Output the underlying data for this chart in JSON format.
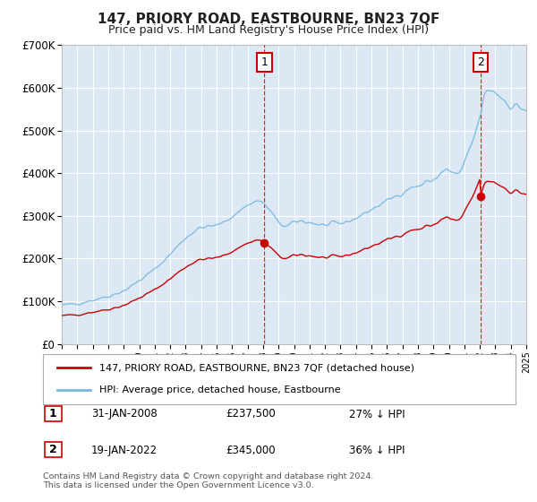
{
  "title": "147, PRIORY ROAD, EASTBOURNE, BN23 7QF",
  "subtitle": "Price paid vs. HM Land Registry's House Price Index (HPI)",
  "legend_property": "147, PRIORY ROAD, EASTBOURNE, BN23 7QF (detached house)",
  "legend_hpi": "HPI: Average price, detached house, Eastbourne",
  "footnote": "Contains HM Land Registry data © Crown copyright and database right 2024.\nThis data is licensed under the Open Government Licence v3.0.",
  "annotation1_date": "31-JAN-2008",
  "annotation1_price": "£237,500",
  "annotation1_hpi": "27% ↓ HPI",
  "annotation2_date": "19-JAN-2022",
  "annotation2_price": "£345,000",
  "annotation2_hpi": "36% ↓ HPI",
  "sale1_x": 2008.08,
  "sale1_y": 237500,
  "sale2_x": 2022.05,
  "sale2_y": 345000,
  "ylim": [
    0,
    700000
  ],
  "xlim_start": 1995,
  "xlim_end": 2025,
  "plot_bg": "#dce9f5",
  "hpi_color": "#7ab8e0",
  "property_color": "#cc0000",
  "grid_color": "#ffffff",
  "annotation_box_color": "#cc0000"
}
